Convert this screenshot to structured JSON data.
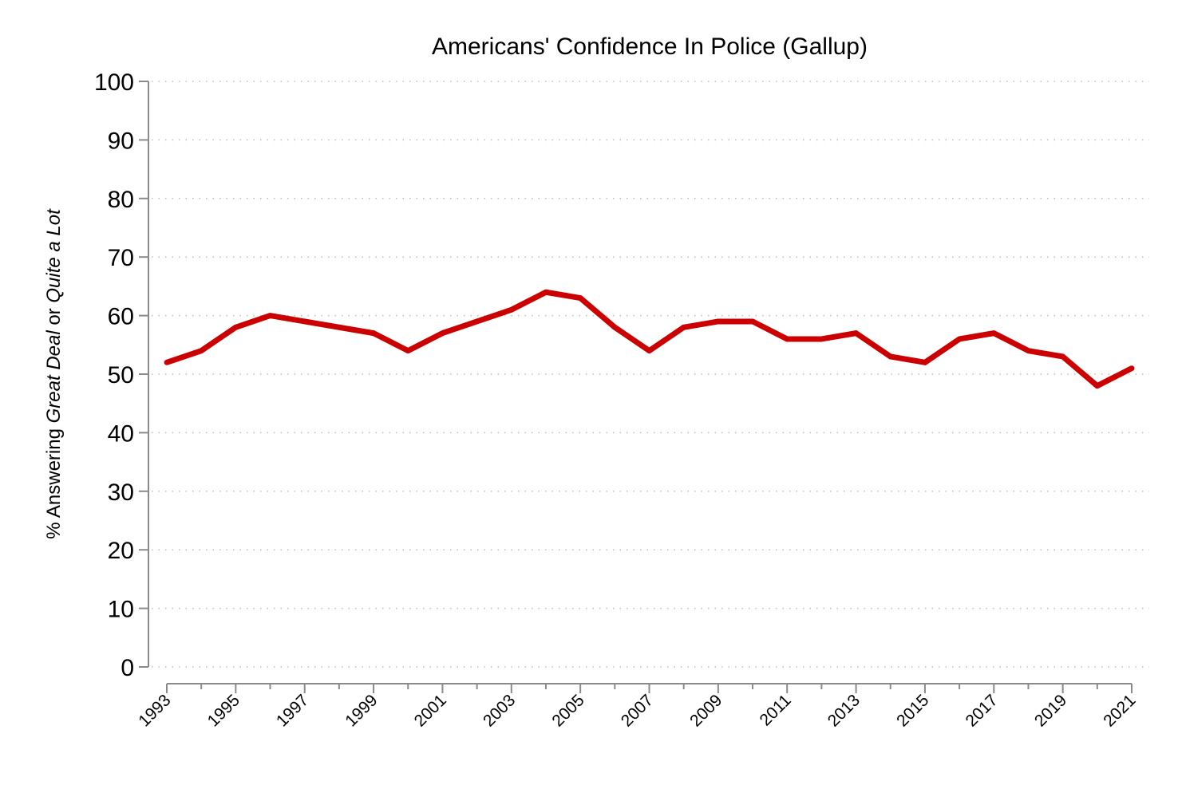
{
  "chart_data": {
    "type": "line",
    "title": "Americans' Confidence In Police (Gallup)",
    "xlabel": "",
    "ylabel": {
      "prefix": "% Answering ",
      "italic1": "Great Deal",
      "middle": " or ",
      "italic2": "Quite a Lot"
    },
    "ylim": [
      0,
      100
    ],
    "yticks": [
      0,
      10,
      20,
      30,
      40,
      50,
      60,
      70,
      80,
      90,
      100
    ],
    "xlim": [
      1993,
      2021
    ],
    "xticks_labeled": [
      1993,
      1995,
      1997,
      1999,
      2001,
      2003,
      2005,
      2007,
      2009,
      2011,
      2013,
      2015,
      2017,
      2019,
      2021
    ],
    "grid": true,
    "series": [
      {
        "name": "Confidence in police",
        "color": "#cc0000",
        "x": [
          1993,
          1994,
          1995,
          1996,
          1999,
          2000,
          2001,
          2003,
          2004,
          2005,
          2006,
          2007,
          2008,
          2009,
          2010,
          2011,
          2012,
          2013,
          2014,
          2015,
          2016,
          2017,
          2018,
          2019,
          2020,
          2021
        ],
        "values": [
          52,
          54,
          58,
          60,
          57,
          54,
          57,
          61,
          64,
          63,
          58,
          54,
          58,
          59,
          59,
          56,
          56,
          57,
          53,
          52,
          56,
          57,
          54,
          53,
          48,
          51
        ]
      }
    ]
  }
}
